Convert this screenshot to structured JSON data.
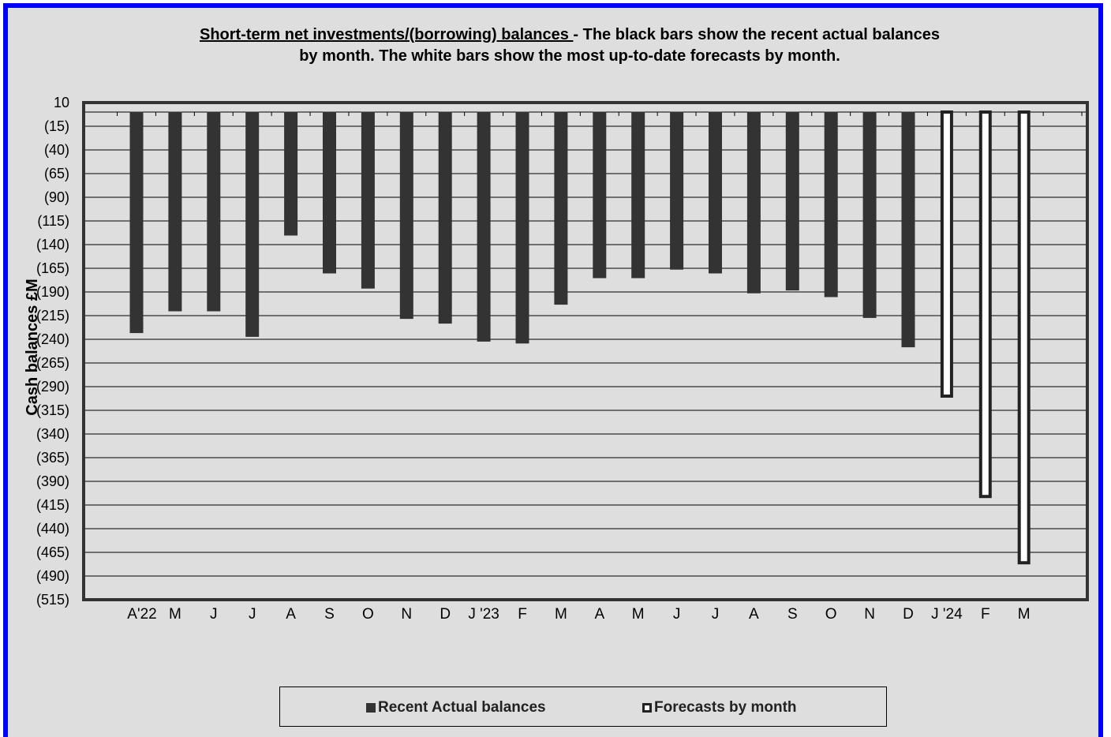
{
  "chart_data": {
    "type": "bar",
    "title_underlined": "Short-term net investments/(borrowing) balances ",
    "title_rest": "- The black bars show the recent actual balances",
    "title_line2": "by month. The white bars show the most up-to-date forecasts by month.",
    "ylabel": "Cash balances £M",
    "xlabel": "",
    "ylim": [
      -515,
      10
    ],
    "yticks": [
      10,
      -15,
      -40,
      -65,
      -90,
      -115,
      -140,
      -165,
      -190,
      -215,
      -240,
      -265,
      -290,
      -315,
      -340,
      -365,
      -390,
      -415,
      -440,
      -465,
      -490,
      -515
    ],
    "ytick_labels": [
      "10",
      "(15)",
      "(40)",
      "(65)",
      "(90)",
      "(115)",
      "(140)",
      "(165)",
      "(190)",
      "(215)",
      "(240)",
      "(265)",
      "(290)",
      "(315)",
      "(340)",
      "(365)",
      "(390)",
      "(415)",
      "(440)",
      "(465)",
      "(490)",
      "(515)"
    ],
    "categories": [
      "A'22",
      "M",
      "J",
      "J",
      "A",
      "S",
      "O",
      "N",
      "D",
      "J '23",
      "F",
      "M",
      "A",
      "M",
      "J",
      "J",
      "A",
      "S",
      "O",
      "N",
      "D",
      "J '24",
      "F",
      "M"
    ],
    "series": [
      {
        "name": "Recent Actual balances",
        "color": "#333333",
        "style": "filled",
        "values": [
          -233,
          -210,
          -210,
          -237,
          -130,
          -170,
          -186,
          -218,
          -223,
          -242,
          -244,
          -203,
          -175,
          -175,
          -166,
          -170,
          -191,
          -188,
          -195,
          -217,
          -248,
          null,
          null,
          null
        ]
      },
      {
        "name": "Forecasts by month",
        "color": "#ffffff",
        "style": "outlined",
        "values": [
          null,
          null,
          null,
          null,
          null,
          null,
          null,
          null,
          null,
          null,
          null,
          null,
          null,
          null,
          null,
          null,
          null,
          null,
          null,
          null,
          null,
          -300,
          -406,
          -476
        ]
      }
    ],
    "grid": true,
    "legend_position": "bottom"
  }
}
